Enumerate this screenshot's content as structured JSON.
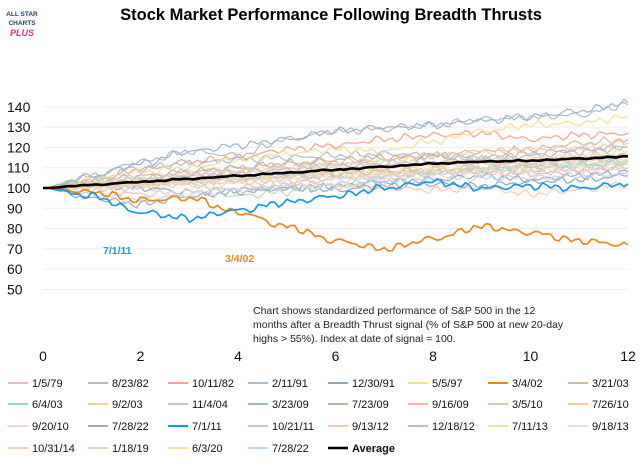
{
  "logo": {
    "line1": "ALL STAR",
    "line2": "CHARTS",
    "line3": "PLUS"
  },
  "chart_data": {
    "type": "line",
    "title": "Stock Market Performance Following Breadth Thrusts",
    "xlim": [
      0,
      12
    ],
    "ylim": [
      50,
      145
    ],
    "x_ticks": [
      0,
      2,
      4,
      6,
      8,
      10,
      12
    ],
    "y_ticks": [
      50,
      60,
      70,
      80,
      90,
      100,
      110,
      120,
      130,
      140
    ],
    "note": [
      "Chart shows standardized performance of S&P 500 in the 12",
      "months after a Breadth Thrust signal (% of S&P 500 at new 20-day",
      "highs > 55%). Index at date of signal = 100."
    ],
    "annotations": [
      {
        "text": "7/1/11",
        "color": "#1a9ad9"
      },
      {
        "text": "3/4/02",
        "color": "#e8891c"
      }
    ],
    "series": [
      {
        "name": "1/5/79",
        "color": "#f2b8c4",
        "values": [
          100,
          101,
          100,
          103,
          104,
          106,
          108,
          110,
          112,
          113,
          114,
          116,
          116
        ]
      },
      {
        "name": "8/23/82",
        "color": "#b8b8c4",
        "values": [
          100,
          106,
          113,
          118,
          116,
          124,
          128,
          129,
          131,
          134,
          135,
          136,
          141
        ]
      },
      {
        "name": "10/11/82",
        "color": "#f4a38d",
        "values": [
          100,
          104,
          109,
          113,
          115,
          119,
          121,
          124,
          126,
          127,
          124,
          126,
          127
        ]
      },
      {
        "name": "2/11/91",
        "color": "#a9bcd6",
        "values": [
          100,
          104,
          110,
          112,
          114,
          115,
          116,
          117,
          116,
          115,
          117,
          119,
          120
        ]
      },
      {
        "name": "12/30/91",
        "color": "#8ea8c6",
        "values": [
          100,
          102,
          100,
          98,
          99,
          100,
          99,
          101,
          102,
          101,
          103,
          104,
          106
        ]
      },
      {
        "name": "5/5/97",
        "color": "#f3e08e",
        "values": [
          100,
          104,
          108,
          110,
          114,
          117,
          119,
          118,
          123,
          128,
          131,
          132,
          135
        ]
      },
      {
        "name": "3/4/02",
        "color": "#e8891c",
        "values": [
          100,
          98,
          94,
          95,
          88,
          81,
          74,
          70,
          75,
          81,
          78,
          74,
          72
        ]
      },
      {
        "name": "3/21/03",
        "color": "#d9b99a",
        "values": [
          100,
          101,
          104,
          108,
          110,
          112,
          113,
          114,
          116,
          118,
          119,
          122,
          124
        ]
      },
      {
        "name": "6/4/03",
        "color": "#9fd2c6",
        "values": [
          100,
          101,
          102,
          104,
          105,
          106,
          107,
          108,
          108,
          110,
          111,
          112,
          114
        ]
      },
      {
        "name": "9/2/03",
        "color": "#e9d4a0",
        "values": [
          100,
          101,
          102,
          104,
          105,
          106,
          107,
          108,
          109,
          110,
          110,
          111,
          112
        ]
      },
      {
        "name": "11/4/04",
        "color": "#c8c8d0",
        "values": [
          100,
          101,
          102,
          103,
          104,
          104,
          105,
          106,
          107,
          108,
          108,
          109,
          110
        ]
      },
      {
        "name": "3/23/09",
        "color": "#97b6cd",
        "values": [
          100,
          106,
          112,
          118,
          121,
          124,
          128,
          130,
          131,
          133,
          135,
          138,
          142
        ]
      },
      {
        "name": "7/23/09",
        "color": "#c4b4a6",
        "values": [
          100,
          103,
          106,
          108,
          110,
          112,
          114,
          115,
          116,
          114,
          112,
          114,
          116
        ]
      },
      {
        "name": "9/16/09",
        "color": "#f0b5a8",
        "values": [
          100,
          102,
          103,
          105,
          105,
          106,
          107,
          108,
          109,
          108,
          107,
          108,
          110
        ]
      },
      {
        "name": "3/5/10",
        "color": "#b9ddb3",
        "values": [
          100,
          103,
          105,
          102,
          96,
          98,
          101,
          104,
          107,
          109,
          110,
          111,
          113
        ]
      },
      {
        "name": "7/26/10",
        "color": "#f6c79c",
        "values": [
          100,
          101,
          103,
          106,
          108,
          110,
          112,
          114,
          116,
          118,
          119,
          120,
          122
        ]
      },
      {
        "name": "9/20/10",
        "color": "#f8cfd4",
        "values": [
          100,
          102,
          104,
          106,
          108,
          109,
          110,
          111,
          111,
          112,
          112,
          113,
          114
        ]
      },
      {
        "name": "7/28/22",
        "color": "#a6a6b0",
        "values": [
          100,
          95,
          92,
          96,
          98,
          100,
          101,
          103,
          104,
          106,
          104,
          106,
          108
        ]
      },
      {
        "name": "7/1/11",
        "color": "#1a9ad9",
        "values": [
          100,
          96,
          88,
          85,
          89,
          93,
          96,
          100,
          103,
          100,
          101,
          100,
          102
        ]
      },
      {
        "name": "10/21/11",
        "color": "#b7c6ea",
        "values": [
          100,
          101,
          102,
          104,
          106,
          107,
          106,
          105,
          107,
          109,
          110,
          111,
          112
        ]
      },
      {
        "name": "9/13/12",
        "color": "#f0c4b6",
        "values": [
          100,
          99,
          97,
          98,
          100,
          102,
          104,
          106,
          108,
          110,
          112,
          114,
          116
        ]
      },
      {
        "name": "12/18/12",
        "color": "#c3b9c3",
        "values": [
          100,
          102,
          104,
          106,
          108,
          109,
          111,
          112,
          113,
          114,
          116,
          118,
          120
        ]
      },
      {
        "name": "7/11/13",
        "color": "#e1e5a5",
        "values": [
          100,
          101,
          102,
          103,
          104,
          105,
          106,
          107,
          108,
          109,
          110,
          111,
          112
        ]
      },
      {
        "name": "9/18/13",
        "color": "#f6d6cf",
        "values": [
          100,
          100,
          101,
          102,
          103,
          104,
          105,
          106,
          106,
          107,
          108,
          109,
          110
        ]
      },
      {
        "name": "10/31/14",
        "color": "#f7cdb5",
        "values": [
          100,
          101,
          102,
          102,
          103,
          102,
          101,
          100,
          99,
          100,
          97,
          99,
          102
        ]
      },
      {
        "name": "1/18/19",
        "color": "#e0d3bc",
        "values": [
          100,
          102,
          105,
          107,
          108,
          110,
          111,
          112,
          112,
          114,
          113,
          114,
          116
        ]
      },
      {
        "name": "6/3/20",
        "color": "#f4e0a0",
        "values": [
          100,
          101,
          102,
          104,
          106,
          107,
          108,
          110,
          111,
          113,
          114,
          116,
          118
        ]
      },
      {
        "name": "7/28/22",
        "color": "#bdd6ee",
        "values": [
          100,
          97,
          94,
          97,
          99,
          101,
          102,
          103,
          104,
          105,
          105,
          106,
          107
        ]
      },
      {
        "name": "Average",
        "color": "#000000",
        "values": [
          100,
          101.5,
          103,
          104.5,
          106,
          107.5,
          109,
          110.5,
          112,
          113,
          113.5,
          114.5,
          115.5
        ]
      }
    ]
  }
}
